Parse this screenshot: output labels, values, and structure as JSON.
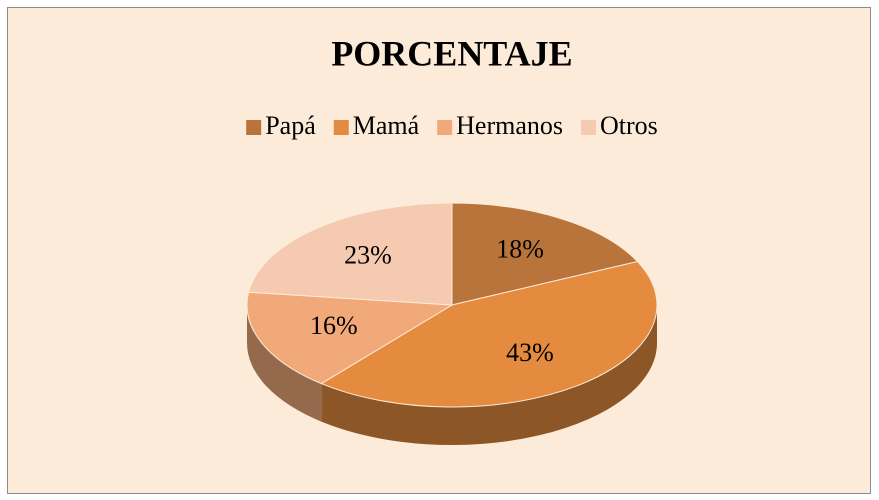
{
  "chart_data": {
    "type": "pie3d",
    "title": "PORCENTAJE",
    "categories": [
      "Papá",
      "Mamá",
      "Hermanos",
      "Otros"
    ],
    "values": [
      18,
      43,
      16,
      23
    ],
    "value_labels": [
      "18%",
      "43%",
      "16%",
      "23%"
    ],
    "colors": [
      "#b8743a",
      "#e48b3f",
      "#f1a97a",
      "#f6c9b1"
    ],
    "legend": "top"
  }
}
